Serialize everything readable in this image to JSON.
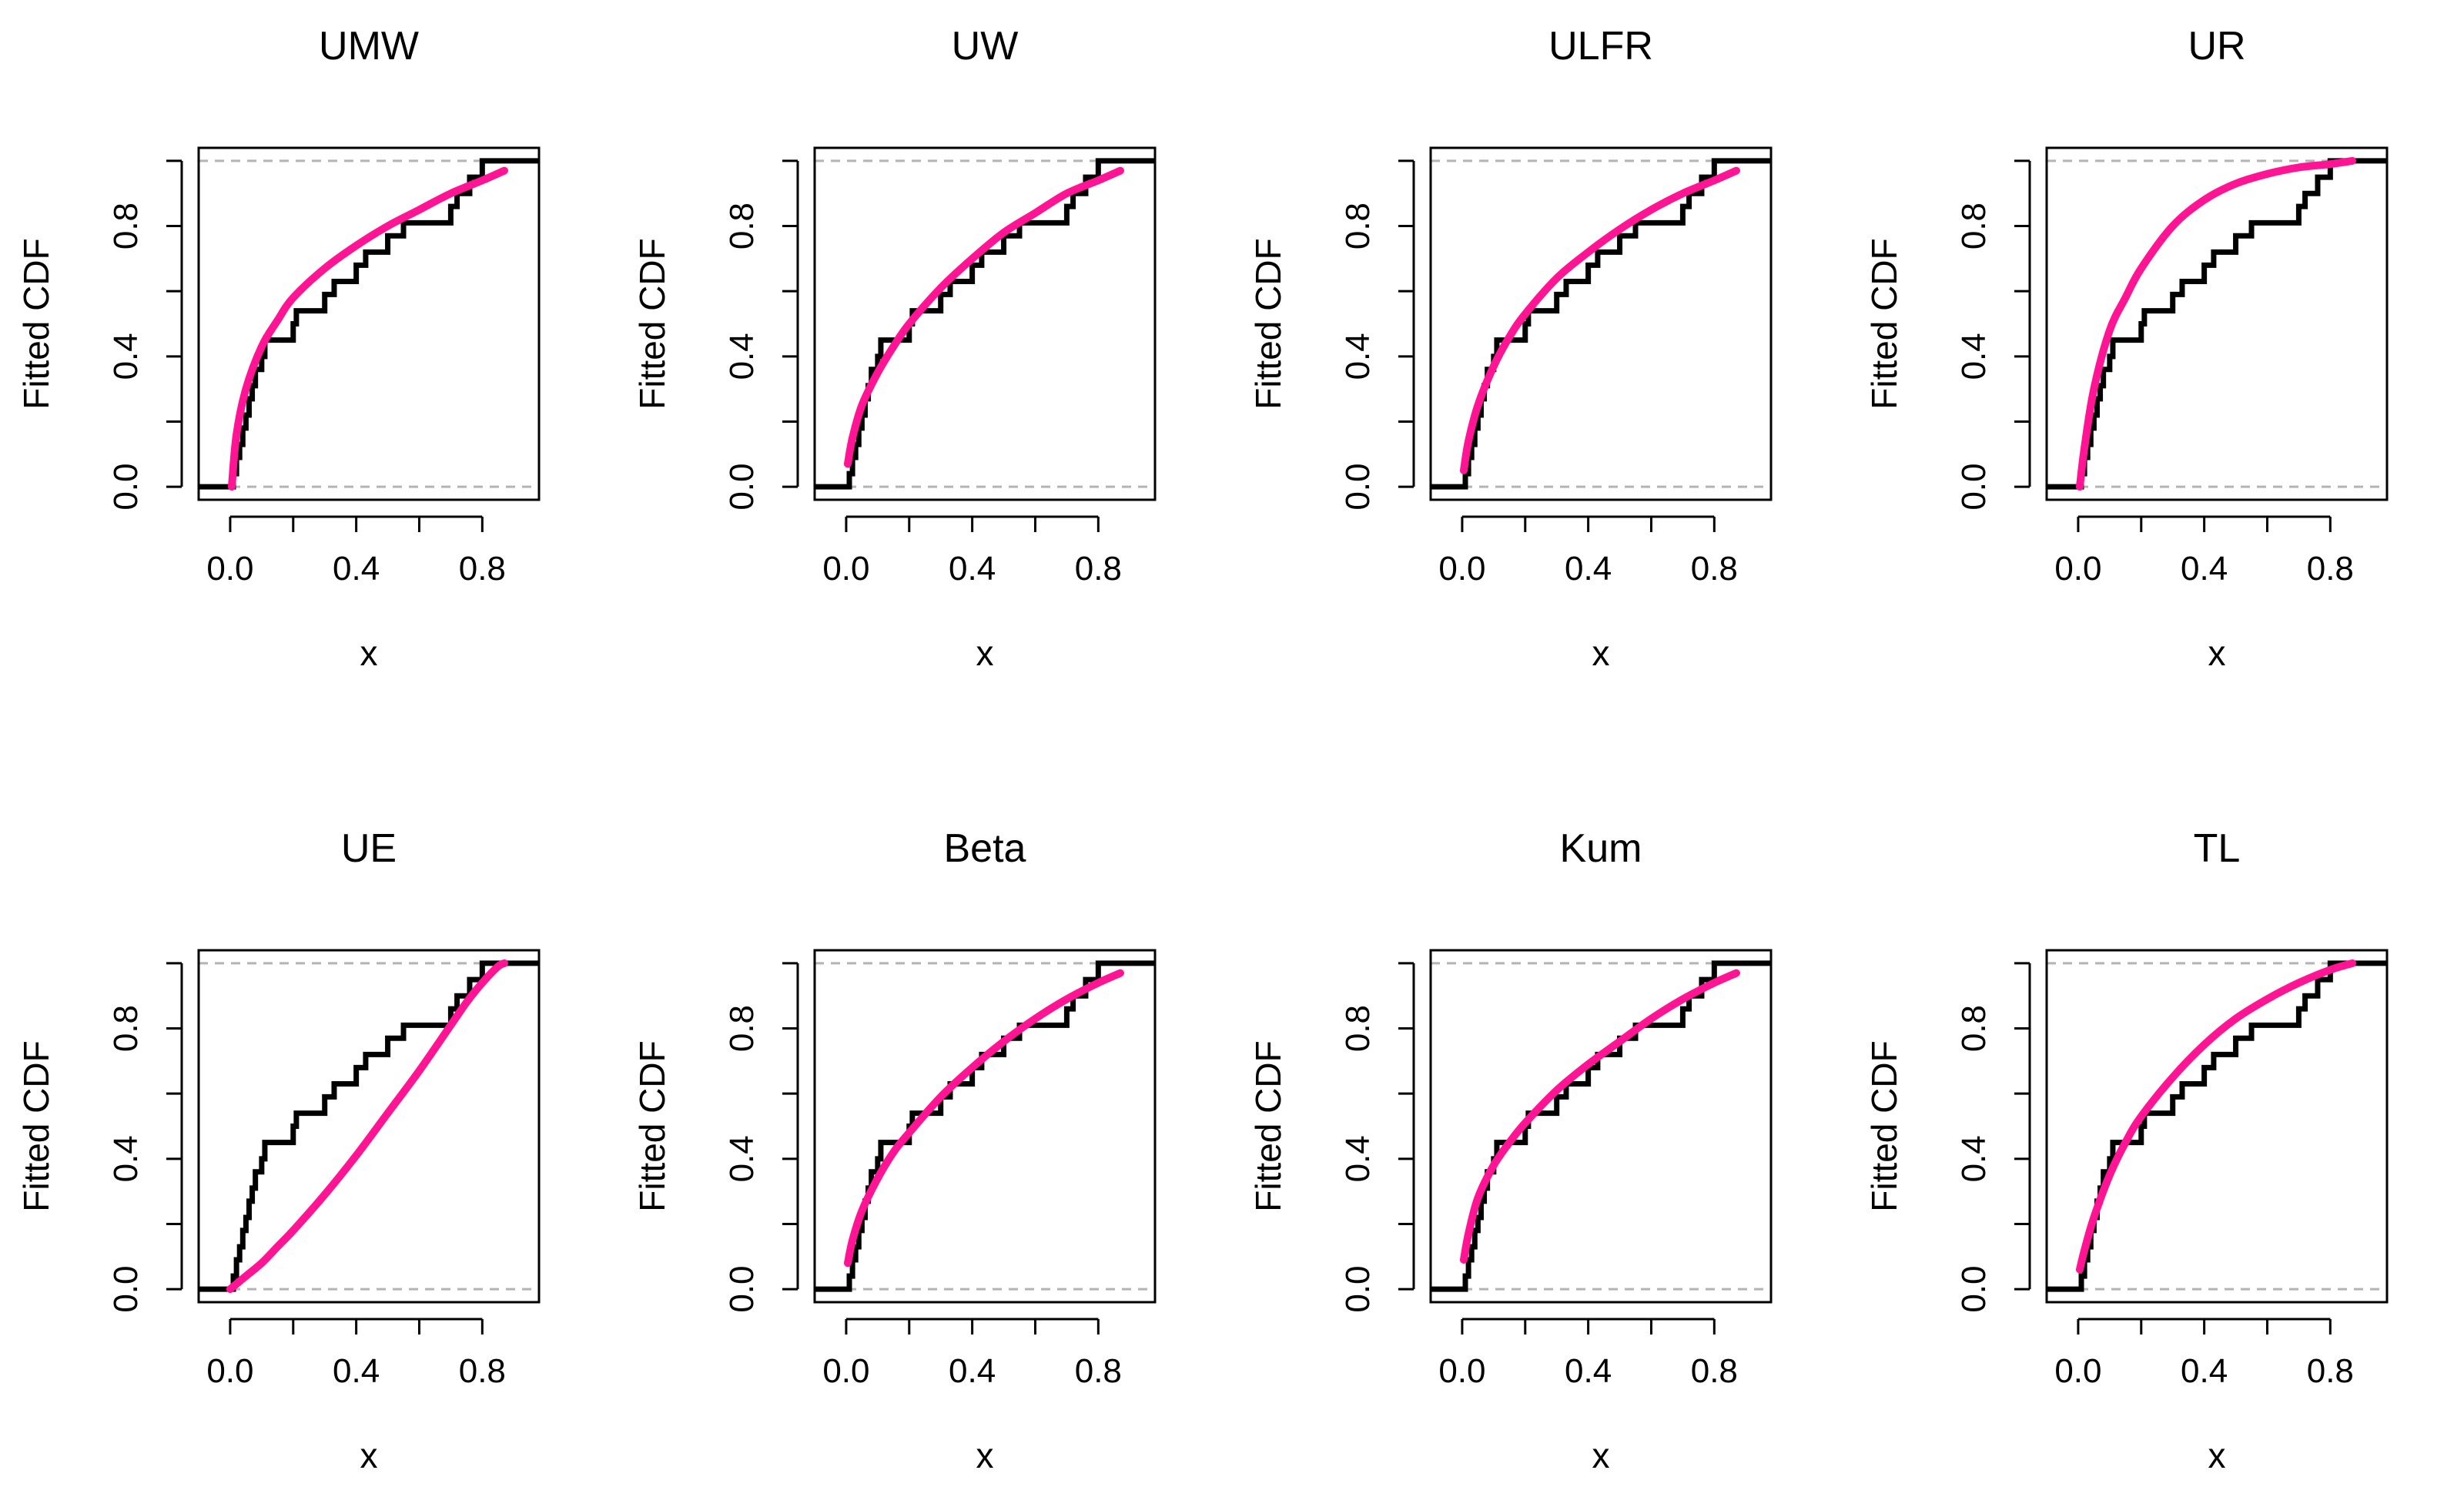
{
  "colors": {
    "ecdf": "#000000",
    "fitted": "#ff1493",
    "refline": "#b4b4b4",
    "background": "#ffffff"
  },
  "chart_data": [
    {
      "type": "line",
      "title": "UMW",
      "xlabel": "x",
      "ylabel": "Fitted CDF",
      "xlim": [
        -0.1,
        0.98
      ],
      "ylim": [
        -0.04,
        1.04
      ],
      "xticks": [
        0.0,
        0.2,
        0.4,
        0.6,
        0.8
      ],
      "xtick_labels": [
        "0.0",
        "",
        "0.4",
        "",
        "0.8"
      ],
      "yticks": [
        0.0,
        0.2,
        0.4,
        0.6,
        0.8,
        1.0
      ],
      "ytick_labels": [
        "0.0",
        "",
        "0.4",
        "",
        "0.8",
        ""
      ],
      "hlines": [
        0,
        1
      ],
      "series": [
        {
          "name": "empirical",
          "style": "step",
          "x": [
            0.01,
            0.02,
            0.03,
            0.04,
            0.05,
            0.06,
            0.07,
            0.08,
            0.1,
            0.11,
            0.2,
            0.21,
            0.3,
            0.33,
            0.4,
            0.43,
            0.5,
            0.55,
            0.7,
            0.72,
            0.76,
            0.8,
            0.83,
            0.86,
            0.87,
            0.88,
            0.9
          ],
          "y": [
            0.04,
            0.09,
            0.13,
            0.18,
            0.22,
            0.27,
            0.31,
            0.36,
            0.4,
            0.45,
            0.5,
            0.54,
            0.59,
            0.63,
            0.68,
            0.72,
            0.77,
            0.81,
            0.86,
            0.9,
            0.95,
            1.0,
            1.0,
            1.0,
            1.0,
            1.0,
            1.0
          ]
        },
        {
          "name": "fitted",
          "style": "curve",
          "x": [
            0.005,
            0.02,
            0.05,
            0.1,
            0.15,
            0.2,
            0.3,
            0.4,
            0.5,
            0.6,
            0.7,
            0.8,
            0.87
          ],
          "y": [
            0.0,
            0.16,
            0.3,
            0.43,
            0.51,
            0.58,
            0.67,
            0.74,
            0.8,
            0.85,
            0.9,
            0.94,
            0.97
          ]
        }
      ]
    },
    {
      "type": "line",
      "title": "UW",
      "xlabel": "x",
      "ylabel": "Fitted CDF",
      "xlim": [
        -0.1,
        0.98
      ],
      "ylim": [
        -0.04,
        1.04
      ],
      "xticks": [
        0.0,
        0.2,
        0.4,
        0.6,
        0.8
      ],
      "xtick_labels": [
        "0.0",
        "",
        "0.4",
        "",
        "0.8"
      ],
      "yticks": [
        0.0,
        0.2,
        0.4,
        0.6,
        0.8,
        1.0
      ],
      "ytick_labels": [
        "0.0",
        "",
        "0.4",
        "",
        "0.8",
        ""
      ],
      "hlines": [
        0,
        1
      ],
      "series": [
        {
          "name": "empirical",
          "style": "step",
          "x": [
            0.01,
            0.02,
            0.03,
            0.04,
            0.05,
            0.06,
            0.07,
            0.08,
            0.1,
            0.11,
            0.2,
            0.21,
            0.3,
            0.33,
            0.4,
            0.43,
            0.5,
            0.55,
            0.7,
            0.72,
            0.76,
            0.8,
            0.83,
            0.86,
            0.87,
            0.88,
            0.9
          ],
          "y": [
            0.04,
            0.09,
            0.13,
            0.18,
            0.22,
            0.27,
            0.31,
            0.36,
            0.4,
            0.45,
            0.5,
            0.54,
            0.59,
            0.63,
            0.68,
            0.72,
            0.77,
            0.81,
            0.86,
            0.9,
            0.95,
            1.0,
            1.0,
            1.0,
            1.0,
            1.0,
            1.0
          ]
        },
        {
          "name": "fitted",
          "style": "curve",
          "x": [
            0.005,
            0.02,
            0.05,
            0.1,
            0.15,
            0.2,
            0.3,
            0.4,
            0.5,
            0.6,
            0.7,
            0.8,
            0.87
          ],
          "y": [
            0.07,
            0.15,
            0.25,
            0.35,
            0.43,
            0.5,
            0.61,
            0.7,
            0.78,
            0.84,
            0.9,
            0.94,
            0.97
          ]
        }
      ]
    },
    {
      "type": "line",
      "title": "ULFR",
      "xlabel": "x",
      "ylabel": "Fitted CDF",
      "xlim": [
        -0.1,
        0.98
      ],
      "ylim": [
        -0.04,
        1.04
      ],
      "xticks": [
        0.0,
        0.2,
        0.4,
        0.6,
        0.8
      ],
      "xtick_labels": [
        "0.0",
        "",
        "0.4",
        "",
        "0.8"
      ],
      "yticks": [
        0.0,
        0.2,
        0.4,
        0.6,
        0.8,
        1.0
      ],
      "ytick_labels": [
        "0.0",
        "",
        "0.4",
        "",
        "0.8",
        ""
      ],
      "hlines": [
        0,
        1
      ],
      "series": [
        {
          "name": "empirical",
          "style": "step",
          "x": [
            0.01,
            0.02,
            0.03,
            0.04,
            0.05,
            0.06,
            0.07,
            0.08,
            0.1,
            0.11,
            0.2,
            0.21,
            0.3,
            0.33,
            0.4,
            0.43,
            0.5,
            0.55,
            0.7,
            0.72,
            0.76,
            0.8,
            0.83,
            0.86,
            0.87,
            0.88,
            0.9
          ],
          "y": [
            0.04,
            0.09,
            0.13,
            0.18,
            0.22,
            0.27,
            0.31,
            0.36,
            0.4,
            0.45,
            0.5,
            0.54,
            0.59,
            0.63,
            0.68,
            0.72,
            0.77,
            0.81,
            0.86,
            0.9,
            0.95,
            1.0,
            1.0,
            1.0,
            1.0,
            1.0,
            1.0
          ]
        },
        {
          "name": "fitted",
          "style": "curve",
          "x": [
            0.005,
            0.02,
            0.05,
            0.1,
            0.15,
            0.2,
            0.3,
            0.4,
            0.5,
            0.6,
            0.7,
            0.8,
            0.87
          ],
          "y": [
            0.05,
            0.14,
            0.25,
            0.37,
            0.46,
            0.53,
            0.64,
            0.72,
            0.79,
            0.85,
            0.9,
            0.94,
            0.97
          ]
        }
      ]
    },
    {
      "type": "line",
      "title": "UR",
      "xlabel": "x",
      "ylabel": "Fitted CDF",
      "xlim": [
        -0.1,
        0.98
      ],
      "ylim": [
        -0.04,
        1.04
      ],
      "xticks": [
        0.0,
        0.2,
        0.4,
        0.6,
        0.8
      ],
      "xtick_labels": [
        "0.0",
        "",
        "0.4",
        "",
        "0.8"
      ],
      "yticks": [
        0.0,
        0.2,
        0.4,
        0.6,
        0.8,
        1.0
      ],
      "ytick_labels": [
        "0.0",
        "",
        "0.4",
        "",
        "0.8",
        ""
      ],
      "hlines": [
        0,
        1
      ],
      "series": [
        {
          "name": "empirical",
          "style": "step",
          "x": [
            0.01,
            0.02,
            0.03,
            0.04,
            0.05,
            0.06,
            0.07,
            0.08,
            0.1,
            0.11,
            0.2,
            0.21,
            0.3,
            0.33,
            0.4,
            0.43,
            0.5,
            0.55,
            0.7,
            0.72,
            0.76,
            0.8,
            0.83,
            0.86,
            0.87,
            0.88,
            0.9
          ],
          "y": [
            0.04,
            0.09,
            0.13,
            0.18,
            0.22,
            0.27,
            0.31,
            0.36,
            0.4,
            0.45,
            0.5,
            0.54,
            0.59,
            0.63,
            0.68,
            0.72,
            0.77,
            0.81,
            0.86,
            0.9,
            0.95,
            1.0,
            1.0,
            1.0,
            1.0,
            1.0,
            1.0
          ]
        },
        {
          "name": "fitted",
          "style": "curve",
          "x": [
            0.005,
            0.02,
            0.05,
            0.1,
            0.15,
            0.2,
            0.3,
            0.4,
            0.5,
            0.6,
            0.7,
            0.8,
            0.87
          ],
          "y": [
            0.0,
            0.12,
            0.3,
            0.48,
            0.58,
            0.67,
            0.8,
            0.88,
            0.93,
            0.96,
            0.98,
            0.99,
            1.0
          ]
        }
      ]
    },
    {
      "type": "line",
      "title": "UE",
      "xlabel": "x",
      "ylabel": "Fitted CDF",
      "xlim": [
        -0.1,
        0.98
      ],
      "ylim": [
        -0.04,
        1.04
      ],
      "xticks": [
        0.0,
        0.2,
        0.4,
        0.6,
        0.8
      ],
      "xtick_labels": [
        "0.0",
        "",
        "0.4",
        "",
        "0.8"
      ],
      "yticks": [
        0.0,
        0.2,
        0.4,
        0.6,
        0.8,
        1.0
      ],
      "ytick_labels": [
        "0.0",
        "",
        "0.4",
        "",
        "0.8",
        ""
      ],
      "hlines": [
        0,
        1
      ],
      "series": [
        {
          "name": "empirical",
          "style": "step",
          "x": [
            0.01,
            0.02,
            0.03,
            0.04,
            0.05,
            0.06,
            0.07,
            0.08,
            0.1,
            0.11,
            0.2,
            0.21,
            0.3,
            0.33,
            0.4,
            0.43,
            0.5,
            0.55,
            0.7,
            0.72,
            0.76,
            0.8,
            0.83,
            0.86,
            0.87,
            0.88,
            0.9
          ],
          "y": [
            0.04,
            0.09,
            0.13,
            0.18,
            0.22,
            0.27,
            0.31,
            0.36,
            0.4,
            0.45,
            0.5,
            0.54,
            0.59,
            0.63,
            0.68,
            0.72,
            0.77,
            0.81,
            0.86,
            0.9,
            0.95,
            1.0,
            1.0,
            1.0,
            1.0,
            1.0,
            1.0
          ]
        },
        {
          "name": "fitted",
          "style": "curve",
          "x": [
            0.0,
            0.05,
            0.1,
            0.15,
            0.2,
            0.3,
            0.4,
            0.5,
            0.6,
            0.7,
            0.75,
            0.8,
            0.85,
            0.87
          ],
          "y": [
            0.0,
            0.04,
            0.08,
            0.13,
            0.18,
            0.29,
            0.41,
            0.54,
            0.67,
            0.81,
            0.88,
            0.94,
            0.99,
            1.0
          ]
        }
      ]
    },
    {
      "type": "line",
      "title": "Beta",
      "xlabel": "x",
      "ylabel": "Fitted CDF",
      "xlim": [
        -0.1,
        0.98
      ],
      "ylim": [
        -0.04,
        1.04
      ],
      "xticks": [
        0.0,
        0.2,
        0.4,
        0.6,
        0.8
      ],
      "xtick_labels": [
        "0.0",
        "",
        "0.4",
        "",
        "0.8"
      ],
      "yticks": [
        0.0,
        0.2,
        0.4,
        0.6,
        0.8,
        1.0
      ],
      "ytick_labels": [
        "0.0",
        "",
        "0.4",
        "",
        "0.8",
        ""
      ],
      "hlines": [
        0,
        1
      ],
      "series": [
        {
          "name": "empirical",
          "style": "step",
          "x": [
            0.01,
            0.02,
            0.03,
            0.04,
            0.05,
            0.06,
            0.07,
            0.08,
            0.1,
            0.11,
            0.2,
            0.21,
            0.3,
            0.33,
            0.4,
            0.43,
            0.5,
            0.55,
            0.7,
            0.72,
            0.76,
            0.8,
            0.83,
            0.86,
            0.87,
            0.88,
            0.9
          ],
          "y": [
            0.04,
            0.09,
            0.13,
            0.18,
            0.22,
            0.27,
            0.31,
            0.36,
            0.4,
            0.45,
            0.5,
            0.54,
            0.59,
            0.63,
            0.68,
            0.72,
            0.77,
            0.81,
            0.86,
            0.9,
            0.95,
            1.0,
            1.0,
            1.0,
            1.0,
            1.0,
            1.0
          ]
        },
        {
          "name": "fitted",
          "style": "curve",
          "x": [
            0.005,
            0.02,
            0.05,
            0.1,
            0.15,
            0.2,
            0.3,
            0.4,
            0.5,
            0.6,
            0.7,
            0.8,
            0.87
          ],
          "y": [
            0.08,
            0.15,
            0.24,
            0.34,
            0.42,
            0.48,
            0.59,
            0.68,
            0.76,
            0.83,
            0.89,
            0.94,
            0.97
          ]
        }
      ]
    },
    {
      "type": "line",
      "title": "Kum",
      "xlabel": "x",
      "ylabel": "Fitted CDF",
      "xlim": [
        -0.1,
        0.98
      ],
      "ylim": [
        -0.04,
        1.04
      ],
      "xticks": [
        0.0,
        0.2,
        0.4,
        0.6,
        0.8
      ],
      "xtick_labels": [
        "0.0",
        "",
        "0.4",
        "",
        "0.8"
      ],
      "yticks": [
        0.0,
        0.2,
        0.4,
        0.6,
        0.8,
        1.0
      ],
      "ytick_labels": [
        "0.0",
        "",
        "0.4",
        "",
        "0.8",
        ""
      ],
      "hlines": [
        0,
        1
      ],
      "series": [
        {
          "name": "empirical",
          "style": "step",
          "x": [
            0.01,
            0.02,
            0.03,
            0.04,
            0.05,
            0.06,
            0.07,
            0.08,
            0.1,
            0.11,
            0.2,
            0.21,
            0.3,
            0.33,
            0.4,
            0.43,
            0.5,
            0.55,
            0.7,
            0.72,
            0.76,
            0.8,
            0.83,
            0.86,
            0.87,
            0.88,
            0.9
          ],
          "y": [
            0.04,
            0.09,
            0.13,
            0.18,
            0.22,
            0.27,
            0.31,
            0.36,
            0.4,
            0.45,
            0.5,
            0.54,
            0.59,
            0.63,
            0.68,
            0.72,
            0.77,
            0.81,
            0.86,
            0.9,
            0.95,
            1.0,
            1.0,
            1.0,
            1.0,
            1.0,
            1.0
          ]
        },
        {
          "name": "fitted",
          "style": "curve",
          "x": [
            0.005,
            0.02,
            0.05,
            0.1,
            0.15,
            0.2,
            0.3,
            0.4,
            0.5,
            0.6,
            0.7,
            0.8,
            0.87
          ],
          "y": [
            0.09,
            0.17,
            0.28,
            0.38,
            0.45,
            0.51,
            0.61,
            0.69,
            0.76,
            0.83,
            0.89,
            0.94,
            0.97
          ]
        }
      ]
    },
    {
      "type": "line",
      "title": "TL",
      "xlabel": "x",
      "ylabel": "Fitted CDF",
      "xlim": [
        -0.1,
        0.98
      ],
      "ylim": [
        -0.04,
        1.04
      ],
      "xticks": [
        0.0,
        0.2,
        0.4,
        0.6,
        0.8
      ],
      "xtick_labels": [
        "0.0",
        "",
        "0.4",
        "",
        "0.8"
      ],
      "yticks": [
        0.0,
        0.2,
        0.4,
        0.6,
        0.8,
        1.0
      ],
      "ytick_labels": [
        "0.0",
        "",
        "0.4",
        "",
        "0.8",
        ""
      ],
      "hlines": [
        0,
        1
      ],
      "series": [
        {
          "name": "empirical",
          "style": "step",
          "x": [
            0.01,
            0.02,
            0.03,
            0.04,
            0.05,
            0.06,
            0.07,
            0.08,
            0.1,
            0.11,
            0.2,
            0.21,
            0.3,
            0.33,
            0.4,
            0.43,
            0.5,
            0.55,
            0.7,
            0.72,
            0.76,
            0.8,
            0.83,
            0.86,
            0.87,
            0.88,
            0.9
          ],
          "y": [
            0.04,
            0.09,
            0.13,
            0.18,
            0.22,
            0.27,
            0.31,
            0.36,
            0.4,
            0.45,
            0.5,
            0.54,
            0.59,
            0.63,
            0.68,
            0.72,
            0.77,
            0.81,
            0.86,
            0.9,
            0.95,
            1.0,
            1.0,
            1.0,
            1.0,
            1.0,
            1.0
          ]
        },
        {
          "name": "fitted",
          "style": "curve",
          "x": [
            0.005,
            0.02,
            0.05,
            0.1,
            0.15,
            0.2,
            0.3,
            0.4,
            0.5,
            0.6,
            0.7,
            0.8,
            0.87
          ],
          "y": [
            0.06,
            0.12,
            0.22,
            0.35,
            0.45,
            0.53,
            0.65,
            0.75,
            0.83,
            0.89,
            0.94,
            0.98,
            1.0
          ]
        }
      ]
    }
  ]
}
